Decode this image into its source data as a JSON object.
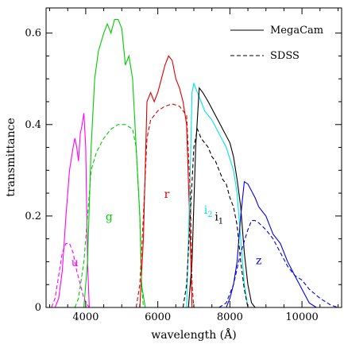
{
  "chart_data": {
    "type": "line",
    "title": "",
    "xlabel": "wavelength (Å)",
    "ylabel": "transmittance",
    "xlim": [
      2900,
      11100
    ],
    "ylim": [
      0,
      0.655
    ],
    "xticks": [
      4000,
      6000,
      8000,
      10000
    ],
    "xtick_labels": [
      "4000",
      "6000",
      "8000",
      "10000"
    ],
    "yticks": [
      0,
      0.2,
      0.4,
      0.6
    ],
    "ytick_labels": [
      "0",
      "0.2",
      "0.4",
      "0.6"
    ],
    "grid": false,
    "legend": {
      "position": "top-right",
      "entries": [
        {
          "label": "MegaCam",
          "style": "solid"
        },
        {
          "label": "SDSS",
          "style": "dashed"
        }
      ]
    },
    "series": [
      {
        "name": "MegaCam",
        "band": "u",
        "color": "#ff00ff",
        "style": "solid",
        "x": [
          3150,
          3250,
          3350,
          3450,
          3550,
          3650,
          3700,
          3750,
          3800,
          3850,
          3900,
          3950,
          4000,
          4050,
          4100
        ],
        "y": [
          0.0,
          0.02,
          0.08,
          0.2,
          0.3,
          0.35,
          0.37,
          0.35,
          0.32,
          0.38,
          0.4,
          0.425,
          0.35,
          0.1,
          0.0
        ]
      },
      {
        "name": "MegaCam",
        "band": "g",
        "color": "#00cc00",
        "style": "solid",
        "x": [
          3950,
          4050,
          4150,
          4250,
          4350,
          4500,
          4600,
          4700,
          4800,
          4900,
          5000,
          5100,
          5200,
          5300,
          5400,
          5500,
          5550,
          5650
        ],
        "y": [
          0.0,
          0.1,
          0.35,
          0.5,
          0.56,
          0.6,
          0.62,
          0.6,
          0.63,
          0.63,
          0.61,
          0.53,
          0.55,
          0.5,
          0.35,
          0.2,
          0.05,
          0.0
        ]
      },
      {
        "name": "MegaCam",
        "band": "r",
        "color": "#dd0000",
        "style": "solid",
        "x": [
          5500,
          5600,
          5700,
          5800,
          5900,
          6000,
          6100,
          6200,
          6300,
          6400,
          6500,
          6600,
          6700,
          6800,
          6900,
          6950
        ],
        "y": [
          0.0,
          0.15,
          0.45,
          0.47,
          0.45,
          0.47,
          0.5,
          0.53,
          0.55,
          0.54,
          0.5,
          0.48,
          0.45,
          0.4,
          0.15,
          0.0
        ]
      },
      {
        "name": "MegaCam",
        "band": "i2",
        "color": "#00e5e5",
        "style": "solid",
        "x": [
          6800,
          6900,
          6950,
          7000,
          7100,
          7200,
          7300,
          7500,
          7700,
          7900,
          8100,
          8200,
          8300,
          8400,
          8500
        ],
        "y": [
          0.0,
          0.3,
          0.47,
          0.49,
          0.47,
          0.45,
          0.43,
          0.41,
          0.38,
          0.35,
          0.3,
          0.25,
          0.15,
          0.05,
          0.0
        ]
      },
      {
        "name": "MegaCam",
        "band": "i1",
        "color": "#000000",
        "style": "solid",
        "x": [
          6850,
          6950,
          7050,
          7150,
          7250,
          7400,
          7600,
          7800,
          8000,
          8100,
          8200,
          8300,
          8400,
          8500,
          8600,
          8700
        ],
        "y": [
          0.0,
          0.1,
          0.35,
          0.48,
          0.47,
          0.45,
          0.42,
          0.39,
          0.36,
          0.33,
          0.28,
          0.22,
          0.12,
          0.05,
          0.01,
          0.0
        ]
      },
      {
        "name": "MegaCam",
        "band": "z",
        "color": "#0000ee",
        "style": "solid",
        "x": [
          7900,
          8000,
          8100,
          8200,
          8300,
          8400,
          8500,
          8600,
          8700,
          8800,
          9000,
          9200,
          9400,
          9600,
          9800,
          10000,
          10200,
          10400
        ],
        "y": [
          0.0,
          0.02,
          0.05,
          0.1,
          0.2,
          0.275,
          0.27,
          0.255,
          0.24,
          0.22,
          0.2,
          0.16,
          0.14,
          0.1,
          0.07,
          0.04,
          0.01,
          0.0
        ]
      },
      {
        "name": "SDSS",
        "band": "u",
        "color": "#ff00ff",
        "style": "dashed",
        "x": [
          3050,
          3150,
          3250,
          3350,
          3450,
          3550,
          3650,
          3750,
          3850,
          3950,
          4050,
          4100
        ],
        "y": [
          0.0,
          0.02,
          0.07,
          0.12,
          0.14,
          0.14,
          0.12,
          0.08,
          0.05,
          0.02,
          0.005,
          0.0
        ]
      },
      {
        "name": "SDSS",
        "band": "g",
        "color": "#00cc00",
        "style": "dashed",
        "x": [
          3700,
          3800,
          3950,
          4050,
          4150,
          4300,
          4500,
          4700,
          4900,
          5100,
          5300,
          5400,
          5500,
          5550,
          5600
        ],
        "y": [
          0.0,
          0.02,
          0.1,
          0.2,
          0.3,
          0.34,
          0.37,
          0.39,
          0.4,
          0.4,
          0.39,
          0.35,
          0.2,
          0.05,
          0.0
        ]
      },
      {
        "name": "SDSS",
        "band": "r",
        "color": "#dd0000",
        "style": "dashed",
        "x": [
          5400,
          5500,
          5600,
          5700,
          5800,
          6000,
          6200,
          6400,
          6600,
          6800,
          6900,
          6950,
          7000
        ],
        "y": [
          0.0,
          0.05,
          0.2,
          0.37,
          0.41,
          0.43,
          0.44,
          0.445,
          0.44,
          0.42,
          0.25,
          0.05,
          0.0
        ]
      },
      {
        "name": "SDSS",
        "band": "i",
        "color": "#000000",
        "style": "dashed",
        "x": [
          6700,
          6800,
          6900,
          7000,
          7100,
          7200,
          7300,
          7400,
          7500,
          7600,
          7700,
          7800,
          7900,
          8000,
          8100,
          8200,
          8300,
          8400,
          8500
        ],
        "y": [
          0.0,
          0.05,
          0.2,
          0.35,
          0.39,
          0.37,
          0.36,
          0.35,
          0.33,
          0.32,
          0.3,
          0.28,
          0.27,
          0.24,
          0.22,
          0.18,
          0.1,
          0.04,
          0.0
        ]
      },
      {
        "name": "SDSS",
        "band": "z",
        "color": "#0000ee",
        "style": "dashed",
        "x": [
          7700,
          7900,
          8100,
          8300,
          8500,
          8600,
          8700,
          8800,
          9000,
          9200,
          9400,
          9600,
          9800,
          10000,
          10200,
          10500,
          10800,
          11000
        ],
        "y": [
          0.0,
          0.01,
          0.05,
          0.12,
          0.17,
          0.19,
          0.19,
          0.185,
          0.17,
          0.15,
          0.12,
          0.09,
          0.07,
          0.06,
          0.04,
          0.02,
          0.005,
          0.0
        ]
      }
    ],
    "band_labels": [
      {
        "text": "u",
        "color": "#ff00ff",
        "x": 3700,
        "y": 0.09
      },
      {
        "text": "g",
        "color": "#00cc00",
        "x": 4650,
        "y": 0.19
      },
      {
        "text": "r",
        "color": "#dd0000",
        "x": 6250,
        "y": 0.24
      },
      {
        "text": "i",
        "sub": "2",
        "color": "#00e5e5",
        "x": 7400,
        "y": 0.205
      },
      {
        "text": "i",
        "sub": "1",
        "color": "#000000",
        "x": 7700,
        "y": 0.19
      },
      {
        "text": "z",
        "color": "#0000ee",
        "x": 8800,
        "y": 0.095
      }
    ]
  }
}
